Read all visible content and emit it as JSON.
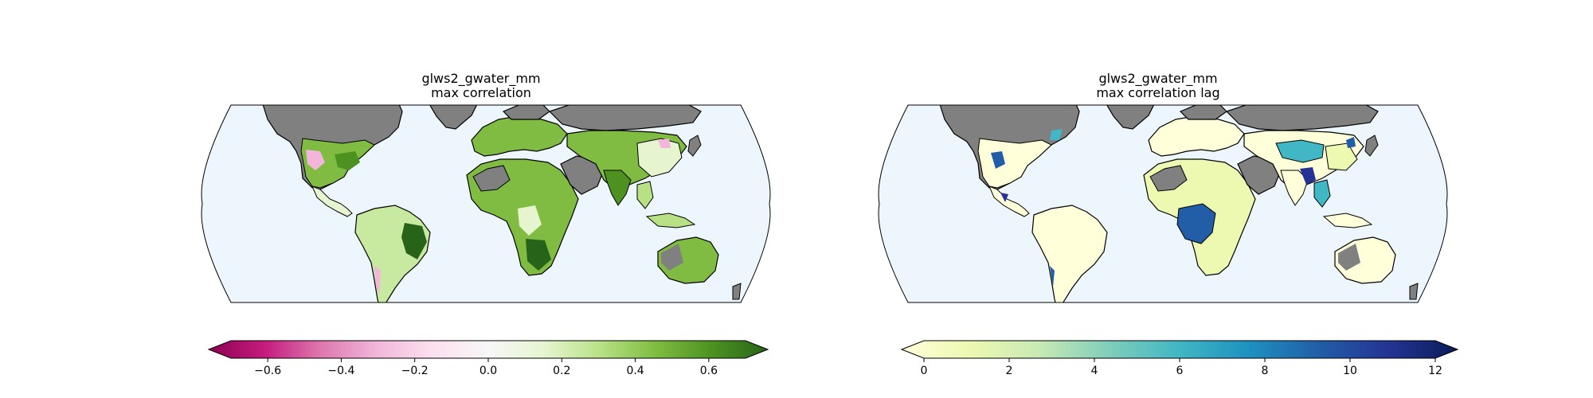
{
  "panels": [
    {
      "title_line1": "glws2_gwater_mm",
      "title_line2": "max correlation",
      "colorbar": {
        "cmap": "PiYG",
        "extend": "both",
        "vmin": -0.7,
        "vmax": 0.7,
        "ticks": [
          "−0.6",
          "−0.4",
          "−0.2",
          "0.0",
          "0.2",
          "0.4",
          "0.6"
        ],
        "tick_values": [
          -0.6,
          -0.4,
          -0.2,
          0.0,
          0.2,
          0.4,
          0.6
        ],
        "colors": [
          "#8e0152",
          "#c51b7d",
          "#de77ae",
          "#f1b6da",
          "#fde0ef",
          "#f7f7f7",
          "#e6f5d0",
          "#b8e186",
          "#7fbc41",
          "#4d9221",
          "#276419"
        ]
      }
    },
    {
      "title_line1": "glws2_gwater_mm",
      "title_line2": "max correlation lag",
      "colorbar": {
        "cmap": "YlGnBu",
        "extend": "both",
        "vmin": 0,
        "vmax": 12,
        "ticks": [
          "0",
          "2",
          "4",
          "6",
          "8",
          "10",
          "12"
        ],
        "tick_values": [
          0,
          2,
          4,
          6,
          8,
          10,
          12
        ],
        "colors": [
          "#ffffd9",
          "#edf8b1",
          "#c7e9b4",
          "#7fcdbb",
          "#41b6c4",
          "#1d91c0",
          "#225ea8",
          "#253494",
          "#081d58"
        ]
      }
    }
  ],
  "map_style": {
    "ocean_color": "#eef6fd",
    "masked_land_color": "#808080",
    "border_color": "#000000"
  }
}
